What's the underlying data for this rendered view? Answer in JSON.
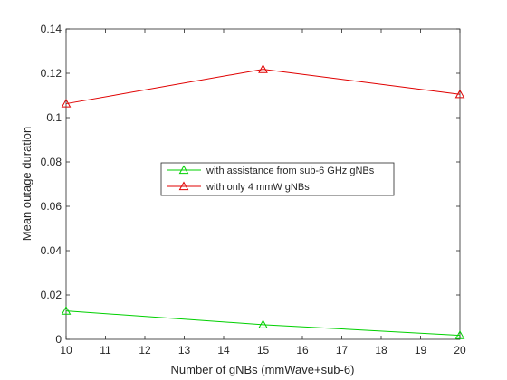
{
  "chart_data": {
    "type": "line",
    "title": "",
    "xlabel": "Number of gNBs (mmWave+sub-6)",
    "ylabel": "Mean outage duration",
    "xlim": [
      10,
      20
    ],
    "ylim": [
      0,
      0.14
    ],
    "xticks": [
      10,
      11,
      12,
      13,
      14,
      15,
      16,
      17,
      18,
      19,
      20
    ],
    "xtick_labels": [
      "10",
      "11",
      "12",
      "13",
      "14",
      "15",
      "16",
      "17",
      "18",
      "19",
      "20"
    ],
    "yticks": [
      0,
      0.02,
      0.04,
      0.06,
      0.08,
      0.1,
      0.12,
      0.14
    ],
    "ytick_labels": [
      "0",
      "0.02",
      "0.04",
      "0.06",
      "0.08",
      "0.1",
      "0.12",
      "0.14"
    ],
    "grid": false,
    "legend_position": "center",
    "series": [
      {
        "name": "with assistance from sub-6 GHz gNBs",
        "color": "#00d000",
        "marker": "triangle",
        "x": [
          10,
          15,
          20
        ],
        "y": [
          0.0128,
          0.0066,
          0.0018
        ]
      },
      {
        "name": "with only 4 mmW gNBs",
        "color": "#e00000",
        "marker": "triangle",
        "x": [
          10,
          15,
          20
        ],
        "y": [
          0.1063,
          0.1218,
          0.1105
        ]
      }
    ]
  }
}
